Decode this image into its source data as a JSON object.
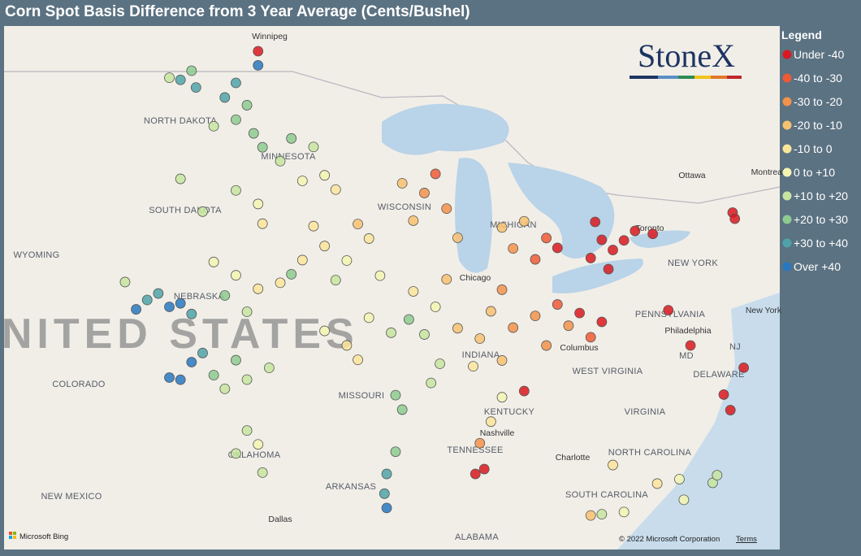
{
  "header": {
    "title": "Corn Spot Basis Difference from 3 Year Average (Cents/Bushel)"
  },
  "logo": "StoneX",
  "legend": {
    "title": "Legend",
    "items": [
      {
        "label": "Under -40",
        "color": "#d9191f"
      },
      {
        "label": "-40 to -30",
        "color": "#ee5a35"
      },
      {
        "label": "-30 to -20",
        "color": "#f3924b"
      },
      {
        "label": "-20 to -10",
        "color": "#f8c171"
      },
      {
        "label": "-10 to 0",
        "color": "#fbe59b"
      },
      {
        "label": "0 to +10",
        "color": "#f3f4b2"
      },
      {
        "label": "+10 to +20",
        "color": "#c7e5a0"
      },
      {
        "label": "+20 to +30",
        "color": "#8dcb8f"
      },
      {
        "label": "+30 to +40",
        "color": "#4fa3a8"
      },
      {
        "label": "Over +40",
        "color": "#2878c0"
      }
    ]
  },
  "map": {
    "labels": [
      "Winnipeg",
      "NORTH DAKOTA",
      "MINNESOTA",
      "SOUTH DAKOTA",
      "WYOMING",
      "NEBRASKA",
      "UNITED STATES",
      "COLORADO",
      "MISSOURI",
      "OKLAHOMA",
      "NEW MEXICO",
      "ARKANSAS",
      "Dallas",
      "ALABAMA",
      "TENNESSEE",
      "Nashville",
      "KENTUCKY",
      "WEST VIRGINIA",
      "VIRGINIA",
      "NORTH CAROLINA",
      "SOUTH CAROLINA",
      "Charlotte",
      "Columbus",
      "PENNSYLVANIA",
      "Philadelphia",
      "NEW YORK",
      "Toronto",
      "Ottawa",
      "Montreal",
      "MD",
      "DELAWARE",
      "NJ",
      "New York",
      "Chicago",
      "MICHIGAN",
      "WISCONSIN",
      "INDIANA"
    ],
    "points": [
      [
        -100.5,
        48.5,
        8
      ],
      [
        -99.8,
        48.2,
        8
      ],
      [
        -98.5,
        47.8,
        8
      ],
      [
        -97.5,
        47.5,
        7
      ],
      [
        -98,
        47,
        7
      ],
      [
        -99,
        46.8,
        6
      ],
      [
        -97.2,
        46.5,
        7
      ],
      [
        -96.8,
        46,
        7
      ],
      [
        -100,
        48.8,
        7
      ],
      [
        -101,
        48.6,
        6
      ],
      [
        -97,
        48.9,
        9
      ],
      [
        -98,
        48.3,
        8
      ],
      [
        -96,
        45.5,
        6
      ],
      [
        -95,
        44.8,
        5
      ],
      [
        -94,
        45,
        5
      ],
      [
        -93.5,
        44.5,
        4
      ],
      [
        -95.5,
        46.3,
        7
      ],
      [
        -94.5,
        46,
        6
      ],
      [
        -98,
        44.5,
        6
      ],
      [
        -97,
        44,
        5
      ],
      [
        -99.5,
        43.8,
        6
      ],
      [
        -100.5,
        45,
        6
      ],
      [
        -96.8,
        43.3,
        4
      ],
      [
        -101.5,
        41,
        8
      ],
      [
        -102,
        40.8,
        8
      ],
      [
        -101,
        40.5,
        9
      ],
      [
        -100.5,
        40.6,
        9
      ],
      [
        -100,
        40.2,
        8
      ],
      [
        -103,
        41.5,
        6
      ],
      [
        -102.5,
        40.5,
        9
      ],
      [
        -98,
        41.5,
        5
      ],
      [
        -97,
        41,
        4
      ],
      [
        -96,
        41.2,
        4
      ],
      [
        -98.5,
        40.8,
        7
      ],
      [
        -97.5,
        40.2,
        6
      ],
      [
        -99,
        42,
        5
      ],
      [
        -100,
        38.5,
        9
      ],
      [
        -99.5,
        38.8,
        8
      ],
      [
        -99,
        38,
        7
      ],
      [
        -98,
        38.5,
        7
      ],
      [
        -97.5,
        37.8,
        6
      ],
      [
        -98.5,
        37.5,
        6
      ],
      [
        -96.5,
        38.2,
        6
      ],
      [
        -100.5,
        37.9,
        9
      ],
      [
        -101,
        38,
        9
      ],
      [
        -97.5,
        36,
        6
      ],
      [
        -97,
        35.5,
        5
      ],
      [
        -98,
        35.2,
        6
      ],
      [
        -96.8,
        34.5,
        6
      ],
      [
        -95,
        42,
        4
      ],
      [
        -94,
        42.5,
        4
      ],
      [
        -93,
        42,
        5
      ],
      [
        -92,
        42.8,
        4
      ],
      [
        -91.5,
        41.5,
        5
      ],
      [
        -93.5,
        41.3,
        6
      ],
      [
        -95.5,
        41.5,
        7
      ],
      [
        -94.5,
        43.2,
        4
      ],
      [
        -92.5,
        43.3,
        3
      ],
      [
        -90,
        43.5,
        3
      ],
      [
        -89.5,
        44.5,
        2
      ],
      [
        -88.5,
        44,
        2
      ],
      [
        -90.5,
        44.8,
        3
      ],
      [
        -89,
        45.2,
        1
      ],
      [
        -88,
        43,
        3
      ],
      [
        -94,
        39.5,
        5
      ],
      [
        -93,
        39,
        4
      ],
      [
        -92,
        40,
        5
      ],
      [
        -91,
        39.5,
        6
      ],
      [
        -92.5,
        38.5,
        4
      ],
      [
        -90.8,
        37.3,
        7
      ],
      [
        -90.5,
        36.8,
        7
      ],
      [
        -90,
        41,
        4
      ],
      [
        -89,
        40.5,
        5
      ],
      [
        -88.5,
        41.5,
        3
      ],
      [
        -89.5,
        39.5,
        6
      ],
      [
        -88,
        39.8,
        3
      ],
      [
        -88.8,
        38.5,
        6
      ],
      [
        -89.2,
        37.8,
        6
      ],
      [
        -90.2,
        40,
        7
      ],
      [
        -86.5,
        40.5,
        3
      ],
      [
        -87,
        39.5,
        3
      ],
      [
        -85.5,
        40,
        2
      ],
      [
        -86,
        41.3,
        2
      ],
      [
        -87.3,
        38.5,
        4
      ],
      [
        -86,
        38.8,
        3
      ],
      [
        -84.5,
        40.5,
        2
      ],
      [
        -83.5,
        41,
        1
      ],
      [
        -83,
        40.3,
        2
      ],
      [
        -82.5,
        40.8,
        0
      ],
      [
        -84,
        39.5,
        2
      ],
      [
        -82,
        40,
        1
      ],
      [
        -81.5,
        40.6,
        0
      ],
      [
        -84.5,
        42.5,
        1
      ],
      [
        -85.5,
        42.8,
        2
      ],
      [
        -83.5,
        43,
        0
      ],
      [
        -84,
        43.3,
        1
      ],
      [
        -86,
        43.5,
        3
      ],
      [
        -85,
        43.8,
        3
      ],
      [
        -81.5,
        43.5,
        0
      ],
      [
        -81,
        43.2,
        0
      ],
      [
        -80.5,
        43.6,
        0
      ],
      [
        -82,
        42.8,
        0
      ],
      [
        -81.2,
        42.5,
        0
      ],
      [
        -80,
        44,
        0
      ],
      [
        -79.2,
        44,
        0
      ],
      [
        -75.6,
        45.3,
        0
      ],
      [
        -75.5,
        45.1,
        0
      ],
      [
        -81.8,
        44.1,
        0
      ],
      [
        -77.5,
        40.3,
        0
      ],
      [
        -75.1,
        39.9,
        0
      ],
      [
        -76,
        38.8,
        0
      ],
      [
        -75.7,
        38.3,
        0
      ],
      [
        -78.5,
        41.4,
        0
      ],
      [
        -86.5,
        36.6,
        4
      ],
      [
        -87,
        35.8,
        2
      ],
      [
        -86.8,
        34.9,
        0
      ],
      [
        -87.2,
        34.7,
        0
      ],
      [
        -85,
        37.8,
        0
      ],
      [
        -86,
        37.5,
        5
      ],
      [
        -78,
        35.5,
        5
      ],
      [
        -77.8,
        34.8,
        5
      ],
      [
        -79,
        35.2,
        4
      ],
      [
        -81,
        35.6,
        4
      ],
      [
        -80.5,
        34,
        5
      ],
      [
        -81.5,
        33.8,
        6
      ],
      [
        -82,
        33.7,
        3
      ],
      [
        -76.5,
        35.6,
        6
      ],
      [
        -76.3,
        35.9,
        6
      ],
      [
        -90.8,
        35.3,
        7
      ],
      [
        -91.2,
        34.5,
        8
      ],
      [
        -91.3,
        33.8,
        8
      ],
      [
        -91.2,
        33.3,
        9
      ],
      [
        -97,
        49.4,
        0
      ]
    ]
  },
  "footer": {
    "brand": "Microsoft Bing",
    "copyright": "© 2022 Microsoft Corporation",
    "terms": "Terms"
  }
}
